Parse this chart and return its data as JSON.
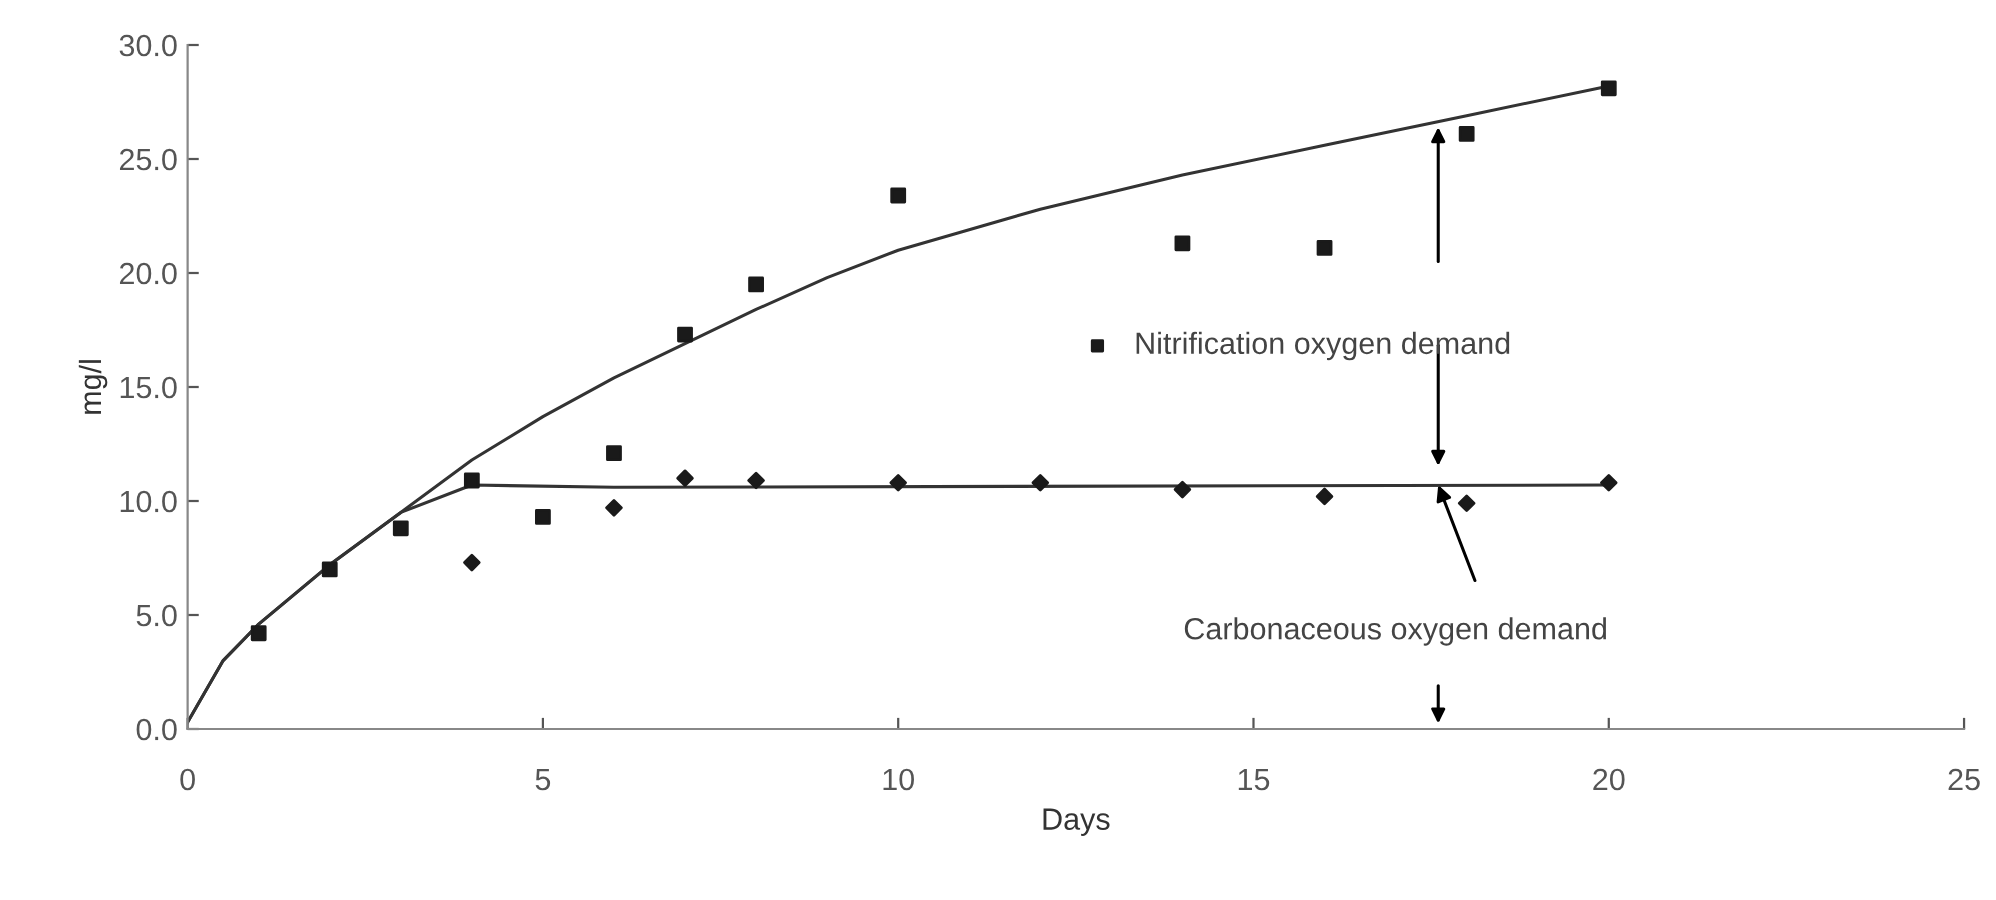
{
  "chart_data": {
    "type": "scatter",
    "xlabel": "Days",
    "ylabel": "mg/l",
    "xlim": [
      0,
      25
    ],
    "xticks": [
      0,
      5,
      10,
      15,
      20,
      25
    ],
    "ylim": [
      0,
      30
    ],
    "yticks": [
      {
        "value": 0,
        "label": "0.0"
      },
      {
        "value": 5,
        "label": "5.0"
      },
      {
        "value": 10,
        "label": "10.0"
      },
      {
        "value": 15,
        "label": "15.0"
      },
      {
        "value": 20,
        "label": "20.0"
      },
      {
        "value": 25,
        "label": "25.0"
      },
      {
        "value": 30,
        "label": "30.0"
      }
    ],
    "grid": false,
    "legend": "center",
    "series": [
      {
        "name": "Nitrification oxygen demand",
        "marker": "square",
        "color": "#1a1a1a",
        "x": [
          1,
          2,
          3,
          4,
          5,
          6,
          7,
          8,
          10,
          14,
          16,
          18,
          20
        ],
        "values": [
          4.2,
          7.0,
          8.8,
          10.9,
          9.3,
          12.1,
          17.3,
          19.5,
          23.4,
          21.3,
          21.1,
          26.1,
          28.1
        ]
      },
      {
        "marker": "diamond",
        "color": "#1a1a1a",
        "x": [
          4,
          6,
          7,
          8,
          10,
          12,
          14,
          16,
          18,
          20
        ],
        "values": [
          7.3,
          9.7,
          11.0,
          10.9,
          10.8,
          10.8,
          10.5,
          10.2,
          9.9,
          10.8
        ]
      },
      {
        "type": "line",
        "marker": "none",
        "line_style": "solid",
        "color": "#333333",
        "x": [
          0,
          0.5,
          1,
          2,
          3,
          4,
          5,
          6,
          7,
          8,
          9,
          10,
          12,
          14,
          16,
          18,
          20
        ],
        "values": [
          0.3,
          3.0,
          4.6,
          7.2,
          9.5,
          11.8,
          13.7,
          15.4,
          16.9,
          18.4,
          19.8,
          21.0,
          22.8,
          24.3,
          25.6,
          26.9,
          28.2
        ]
      },
      {
        "type": "line",
        "marker": "none",
        "line_style": "solid",
        "color": "#333333",
        "x": [
          0,
          0.5,
          1,
          2,
          3,
          4,
          6,
          20
        ],
        "values": [
          0.3,
          3.0,
          4.6,
          7.2,
          9.5,
          10.7,
          10.6,
          10.7
        ]
      }
    ],
    "annotations": [
      {
        "text": "Carbonaceous oxygen demand",
        "x": 17.6,
        "y": 10.7
      }
    ]
  }
}
